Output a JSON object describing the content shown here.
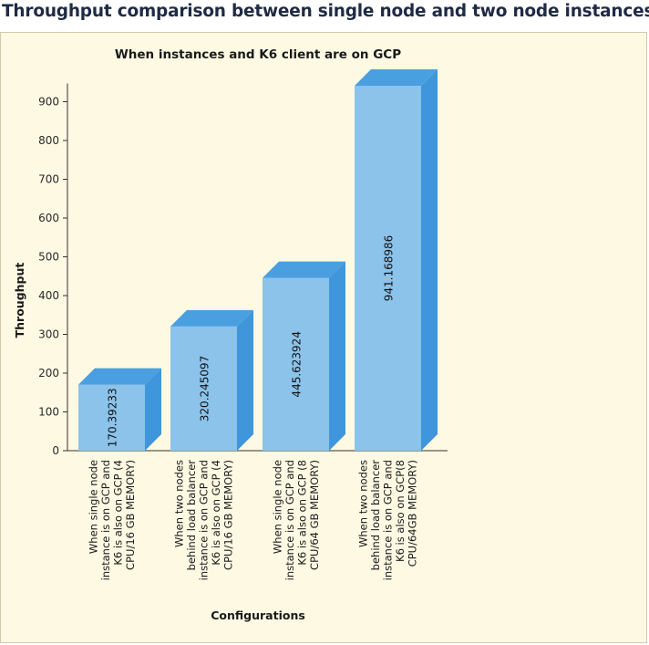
{
  "page": {
    "heading": "Throughput comparison between single node and two node instances"
  },
  "colors": {
    "panel_bg": "#fdf9e3",
    "bar_front": "#8cc3ea",
    "bar_top": "#4a9fe0",
    "bar_side": "#3f96da",
    "axis": "#333333"
  },
  "chart_data": {
    "type": "bar",
    "title": "When instances and K6 client are on GCP",
    "xlabel": "Configurations",
    "ylabel": "Throughput",
    "ylim": [
      0,
      900
    ],
    "yticks": [
      0,
      100,
      200,
      300,
      400,
      500,
      600,
      700,
      800,
      900
    ],
    "categories": [
      [
        "When single node",
        "instance is on GCP and",
        "K6 is also on GCP (4",
        "CPU/16 GB MEMORY)"
      ],
      [
        "When two nodes",
        "behind load balancer",
        "instance is on GCP and",
        "K6 is also on GCP (4",
        "CPU/16 GB MEMORY)"
      ],
      [
        "When single node",
        "instance is on GCP and",
        "K6 is also on GCP (8",
        "CPU/64 GB MEMORY)"
      ],
      [
        "When two nodes",
        "behind load balancer",
        "instance is on GCP and",
        "K6 is also on GCP(8",
        "CPU/64GB MEMORY)"
      ]
    ],
    "values": [
      170.39233,
      320.245097,
      445.623924,
      941.168986
    ],
    "value_labels": [
      "170.39233",
      "320.245097",
      "445.623924",
      "941.168986"
    ],
    "grid": false,
    "legend": "none"
  }
}
